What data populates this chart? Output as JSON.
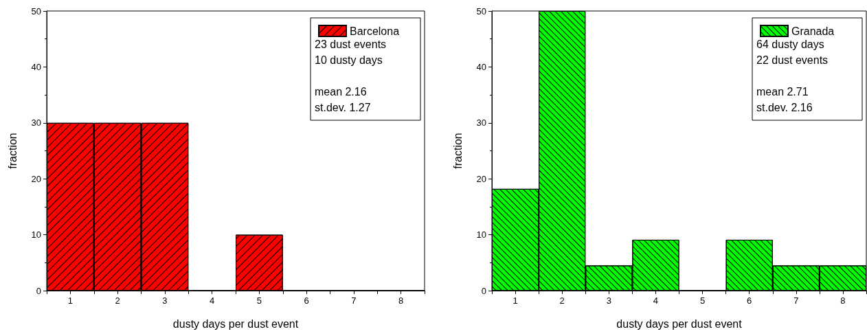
{
  "chart_data": [
    {
      "type": "histogram",
      "xlabel": "dusty days per dust event",
      "ylabel": "fraction",
      "bins": [
        0.5,
        1.5,
        2.5,
        3.5,
        4.5,
        5.5,
        6.5,
        7.5,
        8.5
      ],
      "series": [
        {
          "name": "Barcelona",
          "color": "#ff0000",
          "values": [
            30,
            30,
            30,
            0,
            10,
            0,
            0,
            0
          ]
        }
      ],
      "annotations": [
        "23 dust events",
        "10 dusty days",
        "mean 2.16",
        "st.dev. 1.27"
      ],
      "xlim": [
        0.5,
        8.5
      ],
      "xticks": [
        1,
        2,
        3,
        4,
        5,
        6,
        7,
        8
      ],
      "ylim": [
        0,
        50
      ],
      "yticks": [
        0,
        10,
        20,
        30,
        40,
        50
      ],
      "grid": false,
      "legend": "top right"
    },
    {
      "type": "histogram",
      "xlabel": "dusty days per dust event",
      "ylabel": "fraction",
      "bins": [
        0.5,
        1.5,
        2.5,
        3.5,
        4.5,
        5.5,
        6.5,
        7.5,
        8.5
      ],
      "series": [
        {
          "name": "Granada",
          "color": "#00ff00",
          "values": [
            18.2,
            50,
            4.5,
            9.1,
            0,
            9.1,
            4.5,
            4.5
          ]
        }
      ],
      "annotations": [
        "64 dusty days",
        "22 dust events",
        "mean 2.71",
        "st.dev. 2.16"
      ],
      "xlim": [
        0.5,
        8.5
      ],
      "xticks": [
        1,
        2,
        3,
        4,
        5,
        6,
        7,
        8
      ],
      "ylim": [
        0,
        50
      ],
      "yticks": [
        0,
        10,
        20,
        30,
        40,
        50
      ],
      "grid": false,
      "legend": "top right"
    }
  ]
}
